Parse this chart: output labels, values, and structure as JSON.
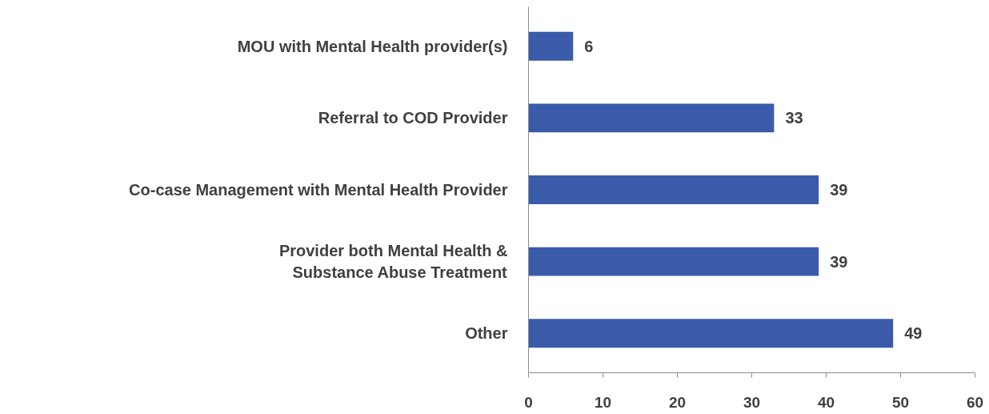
{
  "chart_data": {
    "type": "bar",
    "orientation": "horizontal",
    "categories": [
      "MOU with Mental Health provider(s)",
      "Referral to COD Provider",
      "Co-case Management with Mental Health Provider",
      "Provider both Mental Health &\nSubstance Abuse Treatment",
      "Other"
    ],
    "values": [
      6,
      33,
      39,
      39,
      49
    ],
    "color": "#3a5ba9",
    "xlim": [
      0,
      60
    ],
    "xticks": [
      0,
      10,
      20,
      30,
      40,
      50,
      60
    ],
    "data_labels": true,
    "grid": false
  }
}
